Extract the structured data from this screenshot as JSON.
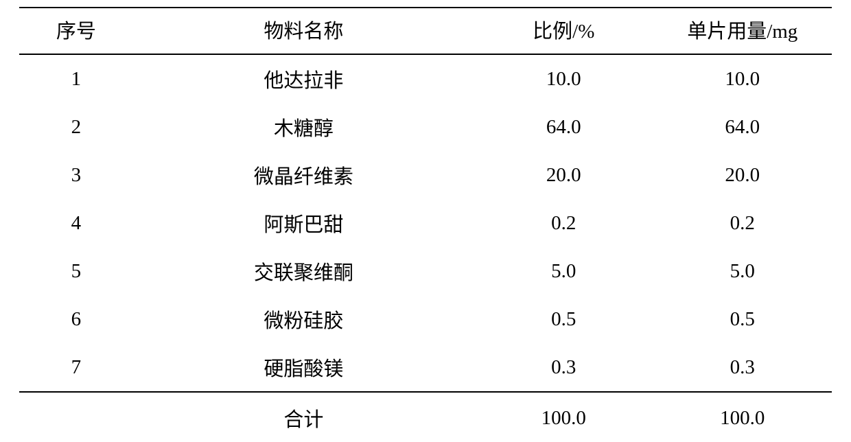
{
  "table": {
    "columns": [
      {
        "key": "num",
        "label": "序号",
        "class": "col-num"
      },
      {
        "key": "name",
        "label": "物料名称",
        "class": "col-name"
      },
      {
        "key": "ratio",
        "label": "比例/%",
        "class": "col-ratio"
      },
      {
        "key": "amount",
        "label": "单片用量/mg",
        "class": "col-amount"
      }
    ],
    "rows": [
      {
        "num": "1",
        "name": "他达拉非",
        "ratio": "10.0",
        "amount": "10.0"
      },
      {
        "num": "2",
        "name": "木糖醇",
        "ratio": "64.0",
        "amount": "64.0"
      },
      {
        "num": "3",
        "name": "微晶纤维素",
        "ratio": "20.0",
        "amount": "20.0"
      },
      {
        "num": "4",
        "name": "阿斯巴甜",
        "ratio": "0.2",
        "amount": "0.2"
      },
      {
        "num": "5",
        "name": "交联聚维酮",
        "ratio": "5.0",
        "amount": "5.0"
      },
      {
        "num": "6",
        "name": "微粉硅胶",
        "ratio": "0.5",
        "amount": "0.5"
      },
      {
        "num": "7",
        "name": "硬脂酸镁",
        "ratio": "0.3",
        "amount": "0.3"
      }
    ],
    "footer": {
      "num": "",
      "name": "合计",
      "ratio": "100.0",
      "amount": "100.0"
    },
    "style": {
      "border_color": "#000000",
      "border_width": 2,
      "font_size": 29,
      "text_color": "#000000",
      "background_color": "#ffffff",
      "font_family": "SimSun, Songti SC, serif"
    }
  }
}
